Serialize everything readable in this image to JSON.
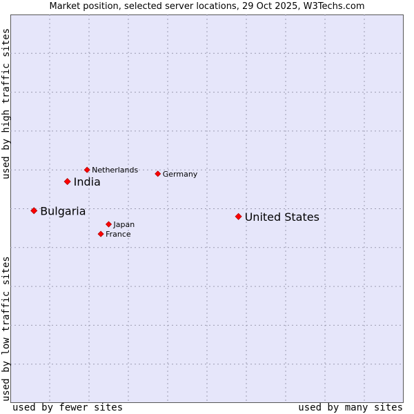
{
  "chart_data": {
    "type": "scatter",
    "title": "Market position, selected server locations, 29 Oct 2025, W3Techs.com",
    "x_axis": {
      "left_label": "used by fewer sites",
      "right_label": "used by many sites",
      "range": [
        0,
        10
      ]
    },
    "y_axis": {
      "bottom_label": "used by low traffic sites",
      "top_label": "used by high traffic sites",
      "range": [
        0,
        10
      ]
    },
    "grid": true,
    "points": [
      {
        "label": "United States",
        "x": 5.8,
        "y": 4.8,
        "emphasis": "large"
      },
      {
        "label": "Bulgaria",
        "x": 0.6,
        "y": 4.95,
        "emphasis": "large"
      },
      {
        "label": "India",
        "x": 1.45,
        "y": 5.7,
        "emphasis": "large"
      },
      {
        "label": "Netherlands",
        "x": 1.95,
        "y": 6.0,
        "emphasis": "small"
      },
      {
        "label": "Germany",
        "x": 3.75,
        "y": 5.9,
        "emphasis": "small"
      },
      {
        "label": "Japan",
        "x": 2.5,
        "y": 4.6,
        "emphasis": "small"
      },
      {
        "label": "France",
        "x": 2.3,
        "y": 4.35,
        "emphasis": "small"
      }
    ],
    "marker_color": "#ff0000"
  }
}
